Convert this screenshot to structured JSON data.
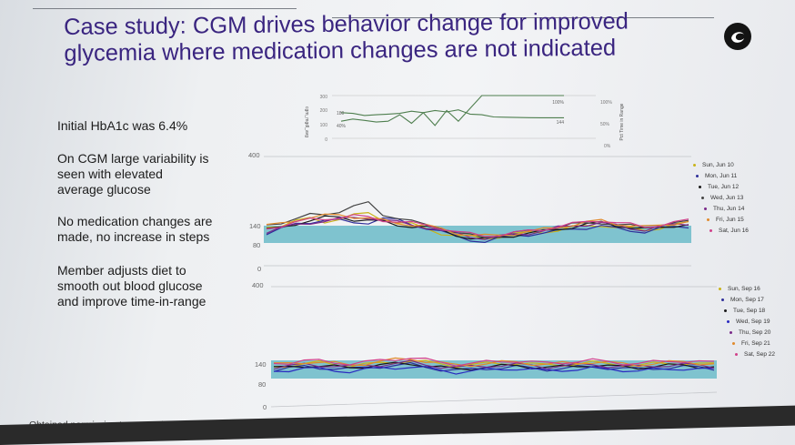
{
  "slide": {
    "title_line1": "Case study: CGM drives behavior change for improved",
    "title_line2": "glycemia where medication changes are not indicated",
    "bullets": [
      "Initial HbA1c was 6.4%",
      "On CGM large variability is\nseen with elevated\naverage glucose",
      "No medication changes are\nmade, no increase in steps",
      "Member adjusts diet to\nsmooth out blood glucose\nand improve time-in-range"
    ],
    "footer": "Obtained permission to use patient data as part of case study"
  },
  "logo_icon": "swirl-logo-icon",
  "colors": {
    "title": "#3a2580",
    "target_band": "#7fc3cf",
    "trend_line": "#4f7f4f"
  },
  "trend_chart": {
    "left_axis_label": "cgm_mgdl_avg",
    "left_ticks": [
      "300",
      "200",
      "100",
      "0"
    ],
    "right_axis_label": "Pct Time in Range",
    "right_ticks": [
      "100%",
      "50%",
      "0%"
    ],
    "annotations": {
      "avg_start": "180",
      "tir_start": "40%",
      "tir_end": "100%",
      "avg_end": "144"
    }
  },
  "chart_data": [
    {
      "type": "line",
      "title": "",
      "ylabel": "cgm_mgdl_avg",
      "y2label": "Pct Time in Range",
      "ylim": [
        0,
        300
      ],
      "y2lim": [
        0,
        100
      ],
      "series": [
        {
          "name": "",
          "values": [
            180,
            175,
            160,
            165,
            170,
            175,
            190,
            180,
            195,
            185,
            200,
            170,
            165,
            150,
            148,
            146,
            145,
            144,
            144,
            144
          ]
        },
        {
          "name": "",
          "values": [
            40,
            45,
            42,
            38,
            40,
            55,
            35,
            60,
            30,
            65,
            40,
            70,
            100,
            100,
            100,
            100,
            100,
            100,
            100,
            100
          ]
        }
      ]
    },
    {
      "type": "line",
      "yticks": [
        "400",
        "140",
        "80",
        "0"
      ],
      "ylim": [
        0,
        400
      ],
      "target_range": [
        80,
        140
      ],
      "legend_position": "right",
      "series": [
        {
          "name": "Sun, Jun 10",
          "color": "#c9b318",
          "values": [
            140,
            150,
            165,
            170,
            160,
            175,
            185,
            190,
            170,
            160,
            150,
            135,
            120,
            110,
            105,
            100,
            108,
            115,
            120,
            125,
            130,
            140,
            145,
            150,
            140,
            135,
            130,
            140,
            150,
            155
          ]
        },
        {
          "name": "Mon, Jun 11",
          "color": "#2e2e9a",
          "values": [
            120,
            135,
            150,
            160,
            170,
            165,
            155,
            160,
            175,
            165,
            150,
            140,
            125,
            105,
            95,
            90,
            100,
            110,
            115,
            120,
            125,
            135,
            140,
            145,
            135,
            130,
            125,
            135,
            140,
            145
          ]
        },
        {
          "name": "Tue, Jun 12",
          "color": "#1a1a1a",
          "values": [
            130,
            140,
            155,
            165,
            175,
            180,
            170,
            165,
            160,
            150,
            145,
            140,
            130,
            115,
            100,
            95,
            105,
            112,
            118,
            125,
            135,
            142,
            150,
            158,
            150,
            140,
            132,
            140,
            148,
            150
          ]
        },
        {
          "name": "Wed, Jun 13",
          "color": "#444444",
          "values": [
            150,
            160,
            170,
            185,
            190,
            200,
            215,
            230,
            190,
            175,
            160,
            150,
            140,
            120,
            110,
            105,
            110,
            120,
            125,
            135,
            140,
            150,
            155,
            160,
            150,
            145,
            140,
            150,
            155,
            160
          ]
        },
        {
          "name": "Thu, Jun 14",
          "color": "#7a2a8a",
          "values": [
            125,
            138,
            148,
            158,
            165,
            170,
            175,
            178,
            168,
            158,
            150,
            142,
            130,
            118,
            108,
            100,
            106,
            114,
            120,
            128,
            138,
            146,
            152,
            156,
            146,
            138,
            132,
            142,
            150,
            155
          ]
        },
        {
          "name": "Fri, Jun 15",
          "color": "#e08a2c",
          "values": [
            145,
            155,
            168,
            175,
            182,
            188,
            180,
            172,
            165,
            158,
            150,
            145,
            135,
            122,
            112,
            108,
            112,
            118,
            124,
            132,
            142,
            150,
            158,
            165,
            155,
            148,
            140,
            148,
            156,
            162
          ]
        },
        {
          "name": "Sat, Jun 16",
          "color": "#d0408a",
          "values": [
            135,
            148,
            160,
            168,
            172,
            178,
            182,
            176,
            168,
            162,
            155,
            148,
            138,
            125,
            115,
            110,
            114,
            120,
            126,
            134,
            144,
            152,
            160,
            168,
            158,
            150,
            142,
            150,
            158,
            165
          ]
        }
      ]
    },
    {
      "type": "line",
      "yticks": [
        "400",
        "140",
        "80",
        "0"
      ],
      "ylim": [
        0,
        400
      ],
      "target_range": [
        80,
        140
      ],
      "legend_position": "right",
      "series": [
        {
          "name": "Sun, Sep 16",
          "color": "#c9b318",
          "values": [
            120,
            125,
            130,
            135,
            130,
            125,
            128,
            132,
            138,
            142,
            136,
            130,
            125,
            128,
            130,
            132,
            135,
            130,
            125,
            128,
            132,
            135,
            130,
            128,
            126,
            130,
            132,
            134,
            130,
            128
          ]
        },
        {
          "name": "Mon, Sep 17",
          "color": "#2e2e9a",
          "values": [
            110,
            115,
            120,
            118,
            115,
            112,
            118,
            122,
            125,
            128,
            120,
            112,
            108,
            110,
            115,
            118,
            120,
            115,
            112,
            115,
            118,
            120,
            118,
            115,
            112,
            115,
            118,
            120,
            118,
            115
          ]
        },
        {
          "name": "Tue, Sep 18",
          "color": "#1a1a1a",
          "values": [
            115,
            120,
            125,
            122,
            120,
            118,
            122,
            126,
            130,
            132,
            125,
            118,
            112,
            115,
            120,
            122,
            125,
            120,
            118,
            120,
            124,
            126,
            122,
            120,
            118,
            122,
            124,
            126,
            122,
            120
          ]
        },
        {
          "name": "Wed, Sep 19",
          "color": "#2a2ac0",
          "values": [
            105,
            110,
            115,
            112,
            108,
            105,
            110,
            115,
            118,
            120,
            115,
            108,
            102,
            105,
            110,
            112,
            115,
            110,
            106,
            110,
            112,
            115,
            112,
            110,
            106,
            110,
            112,
            115,
            112,
            110
          ]
        },
        {
          "name": "Thu, Sep 20",
          "color": "#7a2a8a",
          "values": [
            118,
            122,
            128,
            126,
            124,
            120,
            124,
            128,
            132,
            136,
            128,
            122,
            118,
            120,
            124,
            126,
            128,
            124,
            120,
            124,
            126,
            128,
            124,
            122,
            120,
            124,
            126,
            128,
            124,
            122
          ]
        },
        {
          "name": "Fri, Sep 21",
          "color": "#e08a2c",
          "values": [
            128,
            132,
            138,
            136,
            132,
            128,
            132,
            138,
            145,
            150,
            140,
            132,
            126,
            128,
            132,
            135,
            138,
            132,
            128,
            132,
            135,
            138,
            134,
            130,
            128,
            132,
            135,
            138,
            134,
            130
          ]
        },
        {
          "name": "Sat, Sep 22",
          "color": "#d0408a",
          "values": [
            132,
            136,
            142,
            140,
            136,
            132,
            136,
            142,
            148,
            152,
            144,
            136,
            130,
            132,
            136,
            140,
            142,
            136,
            132,
            136,
            140,
            142,
            138,
            134,
            132,
            136,
            140,
            142,
            138,
            134
          ]
        }
      ]
    }
  ]
}
